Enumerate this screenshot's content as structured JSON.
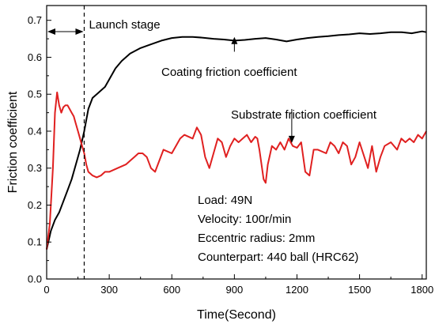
{
  "chart_data": {
    "type": "line",
    "xlabel": "Time(Second)",
    "ylabel": "Friction coefficient",
    "xlim": [
      0,
      1820
    ],
    "ylim": [
      0,
      0.74
    ],
    "xticks": [
      0,
      300,
      600,
      900,
      1200,
      1500,
      1800
    ],
    "xtick_labels": [
      "0",
      "300",
      "600",
      "900",
      "1200",
      "1500",
      "1800"
    ],
    "yticks": [
      0.0,
      0.1,
      0.2,
      0.3,
      0.4,
      0.5,
      0.6,
      0.7
    ],
    "ytick_labels": [
      "0.0",
      "0.1",
      "0.2",
      "0.3",
      "0.4",
      "0.5",
      "0.6",
      "0.7"
    ],
    "grid": false,
    "colors": {
      "coating": "#000000",
      "substrate": "#e02020",
      "axis": "#000000"
    },
    "launch_stage": {
      "label": "Launch stage",
      "x_end": 180
    },
    "series": [
      {
        "key": "coating",
        "color": "#000000",
        "x": [
          0,
          20,
          40,
          60,
          80,
          100,
          120,
          140,
          160,
          180,
          200,
          220,
          240,
          260,
          280,
          300,
          330,
          360,
          400,
          450,
          500,
          550,
          600,
          650,
          700,
          750,
          800,
          850,
          900,
          950,
          1000,
          1050,
          1100,
          1150,
          1200,
          1250,
          1300,
          1350,
          1400,
          1450,
          1500,
          1550,
          1600,
          1650,
          1700,
          1750,
          1800,
          1820
        ],
        "y": [
          0.08,
          0.13,
          0.16,
          0.18,
          0.21,
          0.24,
          0.27,
          0.31,
          0.35,
          0.4,
          0.46,
          0.49,
          0.5,
          0.51,
          0.52,
          0.54,
          0.57,
          0.59,
          0.61,
          0.625,
          0.635,
          0.645,
          0.652,
          0.655,
          0.655,
          0.653,
          0.65,
          0.648,
          0.645,
          0.647,
          0.65,
          0.652,
          0.648,
          0.643,
          0.648,
          0.652,
          0.655,
          0.657,
          0.66,
          0.662,
          0.665,
          0.663,
          0.665,
          0.668,
          0.668,
          0.665,
          0.67,
          0.668
        ]
      },
      {
        "key": "substrate",
        "color": "#e02020",
        "x": [
          0,
          15,
          30,
          40,
          50,
          60,
          70,
          80,
          90,
          100,
          110,
          120,
          130,
          140,
          150,
          160,
          170,
          180,
          190,
          200,
          220,
          240,
          260,
          280,
          300,
          340,
          380,
          400,
          420,
          440,
          460,
          480,
          500,
          520,
          560,
          600,
          640,
          660,
          700,
          720,
          740,
          760,
          780,
          800,
          820,
          840,
          860,
          880,
          900,
          920,
          940,
          960,
          980,
          1000,
          1010,
          1020,
          1040,
          1050,
          1060,
          1080,
          1100,
          1120,
          1140,
          1160,
          1180,
          1200,
          1220,
          1240,
          1260,
          1280,
          1300,
          1340,
          1360,
          1380,
          1400,
          1420,
          1440,
          1460,
          1480,
          1500,
          1540,
          1560,
          1580,
          1600,
          1620,
          1650,
          1680,
          1700,
          1720,
          1740,
          1760,
          1780,
          1800,
          1820
        ],
        "y": [
          0.08,
          0.15,
          0.3,
          0.45,
          0.505,
          0.47,
          0.45,
          0.465,
          0.47,
          0.47,
          0.46,
          0.45,
          0.44,
          0.42,
          0.4,
          0.38,
          0.36,
          0.34,
          0.31,
          0.29,
          0.28,
          0.275,
          0.28,
          0.29,
          0.29,
          0.3,
          0.31,
          0.32,
          0.33,
          0.34,
          0.34,
          0.33,
          0.3,
          0.29,
          0.35,
          0.34,
          0.38,
          0.39,
          0.38,
          0.41,
          0.39,
          0.33,
          0.3,
          0.34,
          0.38,
          0.37,
          0.33,
          0.36,
          0.38,
          0.37,
          0.38,
          0.39,
          0.37,
          0.385,
          0.38,
          0.35,
          0.27,
          0.26,
          0.31,
          0.36,
          0.35,
          0.37,
          0.35,
          0.38,
          0.36,
          0.355,
          0.37,
          0.29,
          0.28,
          0.35,
          0.35,
          0.34,
          0.37,
          0.36,
          0.34,
          0.37,
          0.36,
          0.31,
          0.33,
          0.37,
          0.3,
          0.36,
          0.29,
          0.33,
          0.36,
          0.37,
          0.35,
          0.38,
          0.37,
          0.38,
          0.37,
          0.39,
          0.38,
          0.4
        ]
      }
    ],
    "annotations": [
      {
        "key": "launch",
        "text": "Launch stage"
      },
      {
        "key": "coating",
        "text": "Coating friction coefficient",
        "arrow_x": 900,
        "arrow_y_from": 0.615,
        "arrow_y_to": 0.655
      },
      {
        "key": "substrate",
        "text": "Substrate friction coefficient",
        "arrow_x": 1175,
        "arrow_y_from": 0.46,
        "arrow_y_to": 0.368
      }
    ],
    "conditions": [
      "Load: 49N",
      "Velocity: 100r/min",
      "Eccentric radius: 2mm",
      "Counterpart: 440 ball (HRC62)"
    ]
  }
}
